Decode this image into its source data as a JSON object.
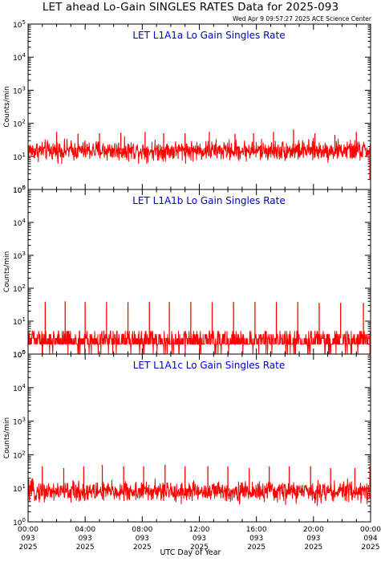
{
  "page": {
    "title": "LET ahead Lo-Gain SINGLES RATES Data for 2025-093",
    "timestamp": "Wed Apr  9 09:57:27 2025 ACE Science Center",
    "x_axis_title": "UTC Day of Year"
  },
  "colors": {
    "trace": "#ff0000",
    "panel_title": "#0000cc",
    "axes": "#000000"
  },
  "chart_data": [
    {
      "type": "line",
      "title": "LET L1A1a Lo Gain Singles Rate",
      "ylabel": "Counts/min",
      "yscale": "log",
      "ylim": [
        1,
        100000
      ],
      "ytick_labels": [
        "10^0",
        "10^1",
        "10^2",
        "10^3",
        "10^4",
        "10^5"
      ],
      "xlim_hours": [
        0,
        24
      ],
      "baseline": 15,
      "noise": "broad",
      "spikes": [
        {
          "t": 2.0,
          "v": 55
        },
        {
          "t": 3.5,
          "v": 48
        },
        {
          "t": 5.0,
          "v": 50
        },
        {
          "t": 6.5,
          "v": 52
        },
        {
          "t": 8.2,
          "v": 55
        },
        {
          "t": 9.5,
          "v": 50
        },
        {
          "t": 11.0,
          "v": 50
        },
        {
          "t": 12.7,
          "v": 55
        },
        {
          "t": 14.5,
          "v": 48
        },
        {
          "t": 15.8,
          "v": 50
        },
        {
          "t": 17.2,
          "v": 55
        },
        {
          "t": 18.6,
          "v": 65
        },
        {
          "t": 20.1,
          "v": 50
        },
        {
          "t": 21.5,
          "v": 45
        },
        {
          "t": 23.0,
          "v": 55
        }
      ],
      "end_drop": {
        "t": 23.95,
        "v": 2
      }
    },
    {
      "type": "line",
      "title": "LET L1A1b Lo Gain Singles Rate",
      "ylabel": "Counts/min",
      "yscale": "log",
      "ylim": [
        1,
        100000
      ],
      "ytick_labels": [
        "10^0",
        "10^1",
        "10^2",
        "10^3",
        "10^4",
        "10^5"
      ],
      "xlim_hours": [
        0,
        24
      ],
      "baseline": 3,
      "noise": "sparse",
      "spikes": [
        {
          "t": 1.2,
          "v": 38
        },
        {
          "t": 2.6,
          "v": 40
        },
        {
          "t": 4.0,
          "v": 38
        },
        {
          "t": 5.5,
          "v": 38
        },
        {
          "t": 7.0,
          "v": 38
        },
        {
          "t": 8.5,
          "v": 38
        },
        {
          "t": 9.9,
          "v": 38
        },
        {
          "t": 11.4,
          "v": 38
        },
        {
          "t": 12.9,
          "v": 38
        },
        {
          "t": 14.4,
          "v": 38
        },
        {
          "t": 15.9,
          "v": 38
        },
        {
          "t": 17.4,
          "v": 38
        },
        {
          "t": 18.9,
          "v": 38
        },
        {
          "t": 20.4,
          "v": 36
        },
        {
          "t": 21.9,
          "v": 36
        },
        {
          "t": 23.5,
          "v": 36
        }
      ],
      "end_drop": null
    },
    {
      "type": "line",
      "title": "LET L1A1c Lo Gain Singles Rate",
      "ylabel": "Counts/min",
      "yscale": "log",
      "ylim": [
        1,
        100000
      ],
      "ytick_labels": [
        "10^0",
        "10^1",
        "10^2",
        "10^3",
        "10^4",
        "10^5"
      ],
      "xlim_hours": [
        0,
        24
      ],
      "baseline": 8,
      "noise": "broad",
      "spikes": [
        {
          "t": 1.0,
          "v": 45
        },
        {
          "t": 2.5,
          "v": 40
        },
        {
          "t": 3.9,
          "v": 45
        },
        {
          "t": 5.2,
          "v": 50
        },
        {
          "t": 6.7,
          "v": 45
        },
        {
          "t": 8.1,
          "v": 45
        },
        {
          "t": 9.6,
          "v": 50
        },
        {
          "t": 11.0,
          "v": 45
        },
        {
          "t": 12.6,
          "v": 45
        },
        {
          "t": 14.0,
          "v": 45
        },
        {
          "t": 15.5,
          "v": 40
        },
        {
          "t": 16.9,
          "v": 45
        },
        {
          "t": 18.3,
          "v": 45
        },
        {
          "t": 19.8,
          "v": 45
        },
        {
          "t": 21.2,
          "v": 40
        },
        {
          "t": 22.9,
          "v": 40
        }
      ],
      "end_drop": {
        "t": 23.95,
        "v": 45
      }
    }
  ],
  "x_ticks": [
    {
      "hours": 0,
      "time": "00:00",
      "day": "093",
      "year": "2025"
    },
    {
      "hours": 4,
      "time": "04:00",
      "day": "093",
      "year": "2025"
    },
    {
      "hours": 8,
      "time": "08:00",
      "day": "093",
      "year": "2025"
    },
    {
      "hours": 12,
      "time": "12:00",
      "day": "093",
      "year": "2025"
    },
    {
      "hours": 16,
      "time": "16:00",
      "day": "093",
      "year": "2025"
    },
    {
      "hours": 20,
      "time": "20:00",
      "day": "093",
      "year": "2025"
    },
    {
      "hours": 24,
      "time": "00:00",
      "day": "094",
      "year": "2025"
    }
  ]
}
